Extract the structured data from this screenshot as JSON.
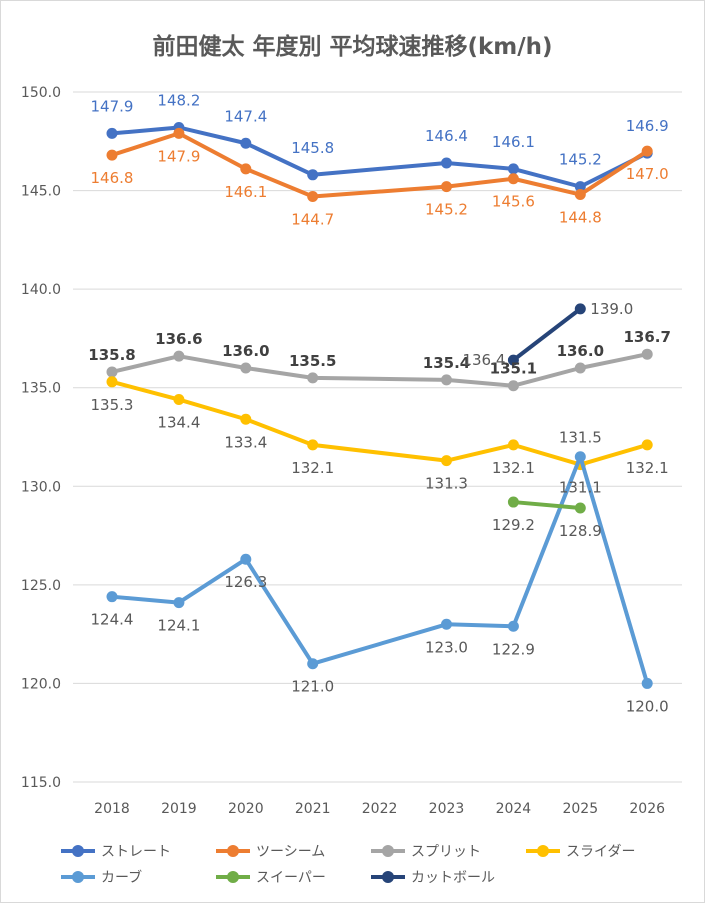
{
  "chart_data": {
    "type": "line",
    "title": "前田健太 年度別 平均球速推移(km/h)",
    "categories": [
      "2018",
      "2019",
      "2020",
      "2021",
      "2022",
      "2023",
      "2024",
      "2025",
      "2026"
    ],
    "ylim": [
      115,
      150
    ],
    "yticks": [
      "115.0",
      "120.0",
      "125.0",
      "130.0",
      "135.0",
      "140.0",
      "145.0",
      "150.0"
    ],
    "grid": true,
    "legend_position": "bottom",
    "series": [
      {
        "name": "ストレート",
        "color": "#4472C4",
        "label_color": "#4472C4",
        "values": [
          147.9,
          148.2,
          147.4,
          145.8,
          null,
          146.4,
          146.1,
          145.2,
          146.9
        ]
      },
      {
        "name": "ツーシーム",
        "color": "#ED7D31",
        "label_color": "#ED7D31",
        "values": [
          146.8,
          147.9,
          146.1,
          144.7,
          null,
          145.2,
          145.6,
          144.8,
          147.0
        ]
      },
      {
        "name": "スプリット",
        "color": "#A5A5A5",
        "label_color": "#404040",
        "values": [
          135.8,
          136.6,
          136.0,
          135.5,
          null,
          135.4,
          135.1,
          136.0,
          136.7
        ]
      },
      {
        "name": "スライダー",
        "color": "#FFC000",
        "label_color": "#595959",
        "values": [
          135.3,
          134.4,
          133.4,
          132.1,
          null,
          131.3,
          132.1,
          131.1,
          132.1
        ]
      },
      {
        "name": "カーブ",
        "color": "#5B9BD5",
        "label_color": "#595959",
        "values": [
          124.4,
          124.1,
          126.3,
          121.0,
          null,
          123.0,
          122.9,
          131.5,
          120.0
        ]
      },
      {
        "name": "スイーパー",
        "color": "#70AD47",
        "label_color": "#595959",
        "values": [
          null,
          null,
          null,
          null,
          null,
          null,
          129.2,
          128.9,
          null
        ]
      },
      {
        "name": "カットボール",
        "color": "#264478",
        "label_color": "#595959",
        "values": [
          null,
          null,
          null,
          null,
          null,
          null,
          136.4,
          139.0,
          null
        ]
      }
    ]
  }
}
